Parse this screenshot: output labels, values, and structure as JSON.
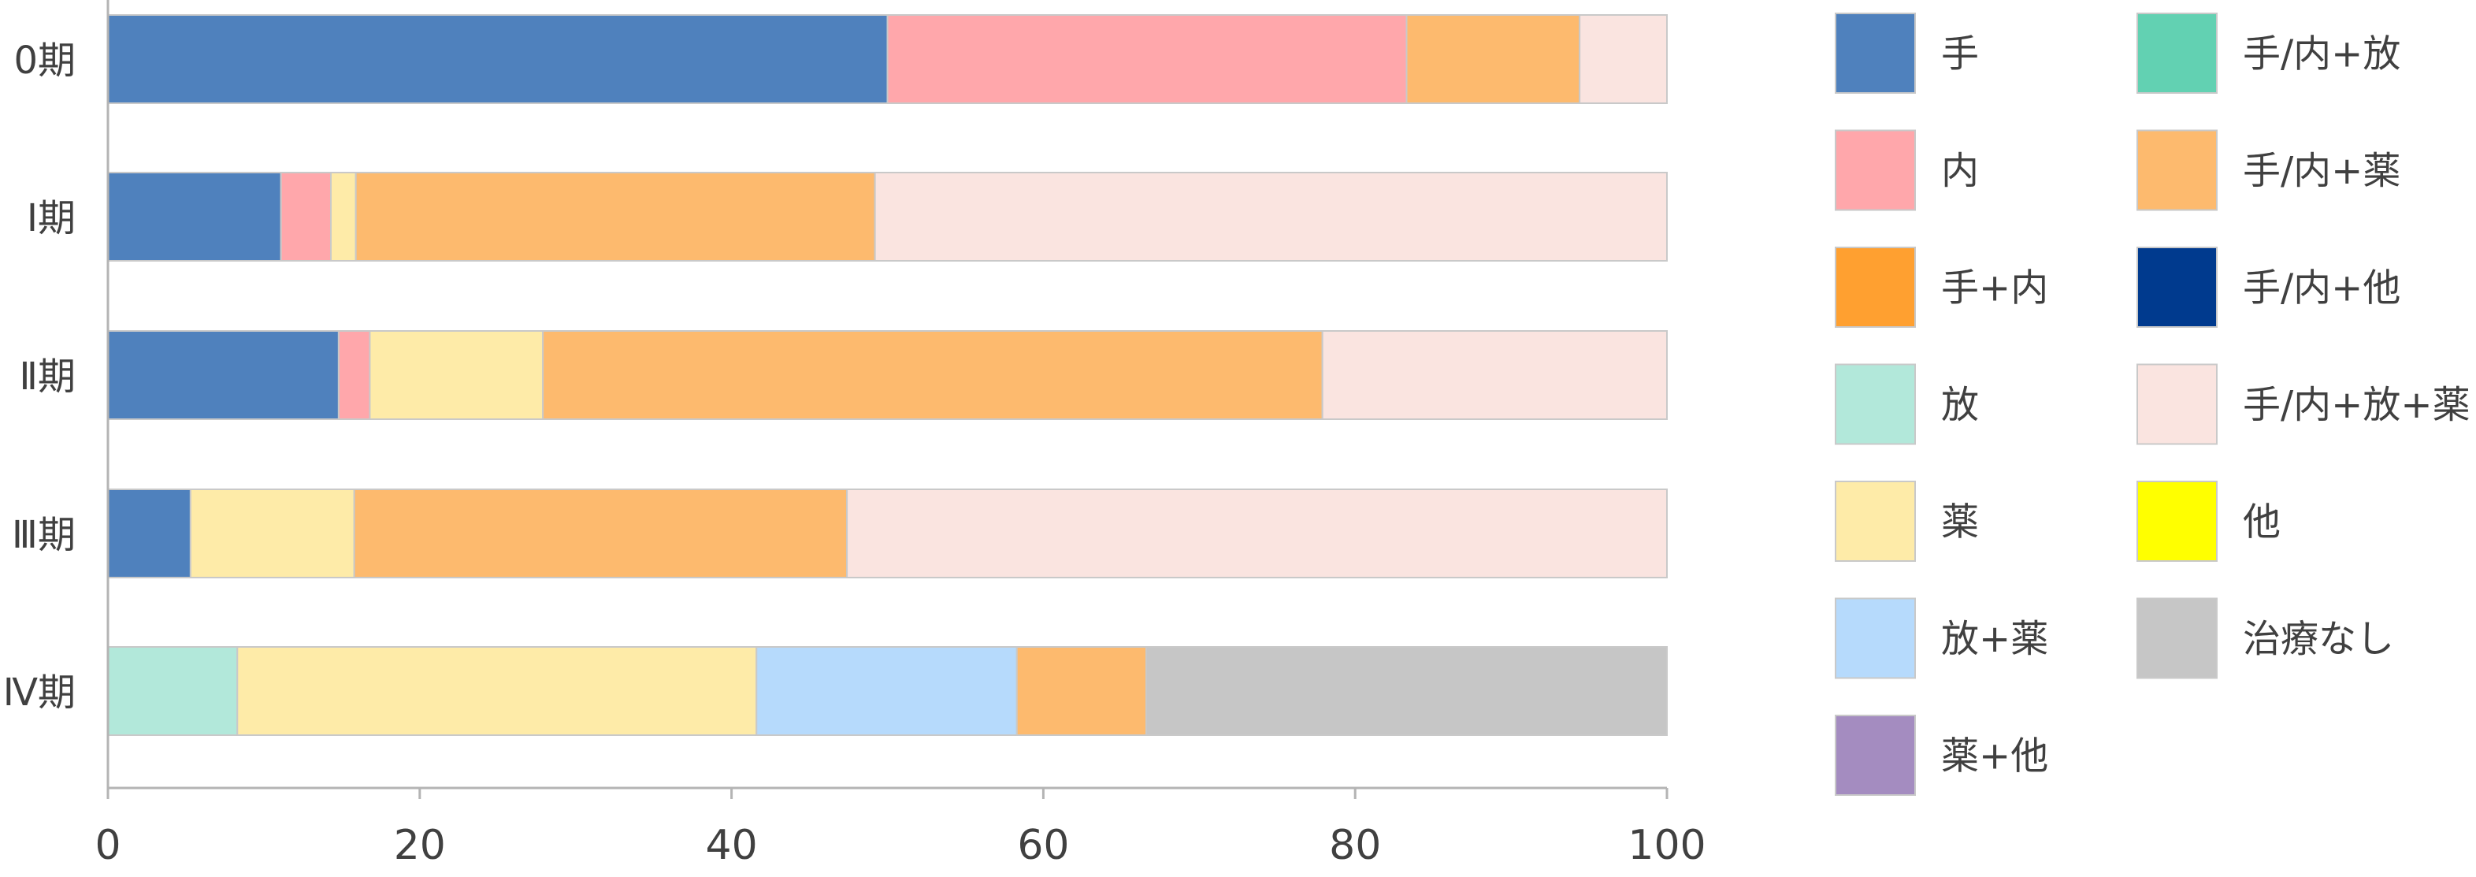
{
  "chart_data": {
    "type": "bar",
    "orientation": "horizontal",
    "stacked": true,
    "categories": [
      "0期",
      "Ⅰ期",
      "Ⅱ期",
      "Ⅲ期",
      "Ⅳ期"
    ],
    "xlim": [
      0,
      100
    ],
    "xticks": [
      "0",
      "20",
      "40",
      "60",
      "80",
      "100"
    ],
    "grid": false,
    "legend_position": "right",
    "series": [
      {
        "name": "手",
        "color": "#4F81BD",
        "values": [
          50.0,
          11.1,
          14.8,
          5.3,
          0
        ]
      },
      {
        "name": "内",
        "color": "#FFA7AB",
        "values": [
          33.3,
          3.2,
          2.0,
          0,
          0
        ]
      },
      {
        "name": "手+内",
        "color": "#FFA030",
        "values": [
          0,
          0,
          0,
          0,
          0
        ]
      },
      {
        "name": "放",
        "color": "#B2E8DA",
        "values": [
          0,
          0,
          0,
          0,
          8.3
        ]
      },
      {
        "name": "薬",
        "color": "#FEEBA8",
        "values": [
          0,
          1.6,
          11.1,
          10.5,
          33.3
        ]
      },
      {
        "name": "放+薬",
        "color": "#B6DAFC",
        "values": [
          0,
          0,
          0,
          0,
          16.7
        ]
      },
      {
        "name": "薬+他",
        "color": "#A48CC0",
        "values": [
          0,
          0,
          0,
          0,
          0
        ]
      },
      {
        "name": "手/内+放",
        "color": "#62D1B2",
        "values": [
          0,
          0,
          0,
          0,
          0
        ]
      },
      {
        "name": "手/内+薬",
        "color": "#FDBA6E",
        "values": [
          11.1,
          33.3,
          50.0,
          31.6,
          8.3
        ]
      },
      {
        "name": "手/内+他",
        "color": "#003A8E",
        "values": [
          0,
          0,
          0,
          0,
          0
        ]
      },
      {
        "name": "手/内+放+薬",
        "color": "#FAE4E0",
        "values": [
          5.6,
          50.8,
          22.1,
          52.6,
          0
        ]
      },
      {
        "name": "他",
        "color": "#FFFF00",
        "values": [
          0,
          0,
          0,
          0,
          0
        ]
      },
      {
        "name": "治療なし",
        "color": "#C6C6C6",
        "values": [
          0,
          0,
          0,
          0,
          33.4
        ]
      }
    ]
  }
}
